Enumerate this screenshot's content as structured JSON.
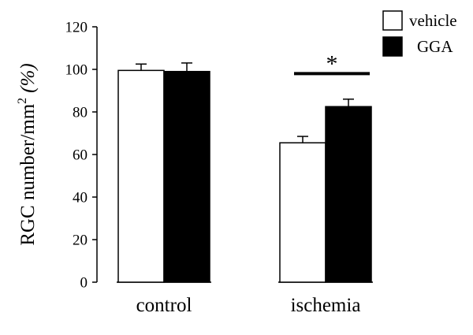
{
  "chart_data": {
    "type": "bar",
    "title": "",
    "xlabel": "",
    "ylabel": "RGC number/mm",
    "ylabel_superscript": "2",
    "ylabel_suffix": "(%)",
    "categories": [
      "control",
      "ischemia"
    ],
    "ylim": [
      0,
      120
    ],
    "yticks": [
      0,
      20,
      40,
      60,
      80,
      100,
      120
    ],
    "grid": false,
    "legend_position": "top-right",
    "series": [
      {
        "name": "vehicle",
        "fill": "#ffffff",
        "values": [
          99.5,
          65.5
        ],
        "errors": [
          3,
          3
        ]
      },
      {
        "name": "GGA",
        "fill": "#000000",
        "values": [
          99,
          82.5
        ],
        "errors": [
          4,
          3.5
        ]
      }
    ],
    "annotations": [
      {
        "text": "*",
        "category": "ischemia",
        "between": [
          "vehicle",
          "GGA"
        ],
        "y": 98
      }
    ]
  }
}
